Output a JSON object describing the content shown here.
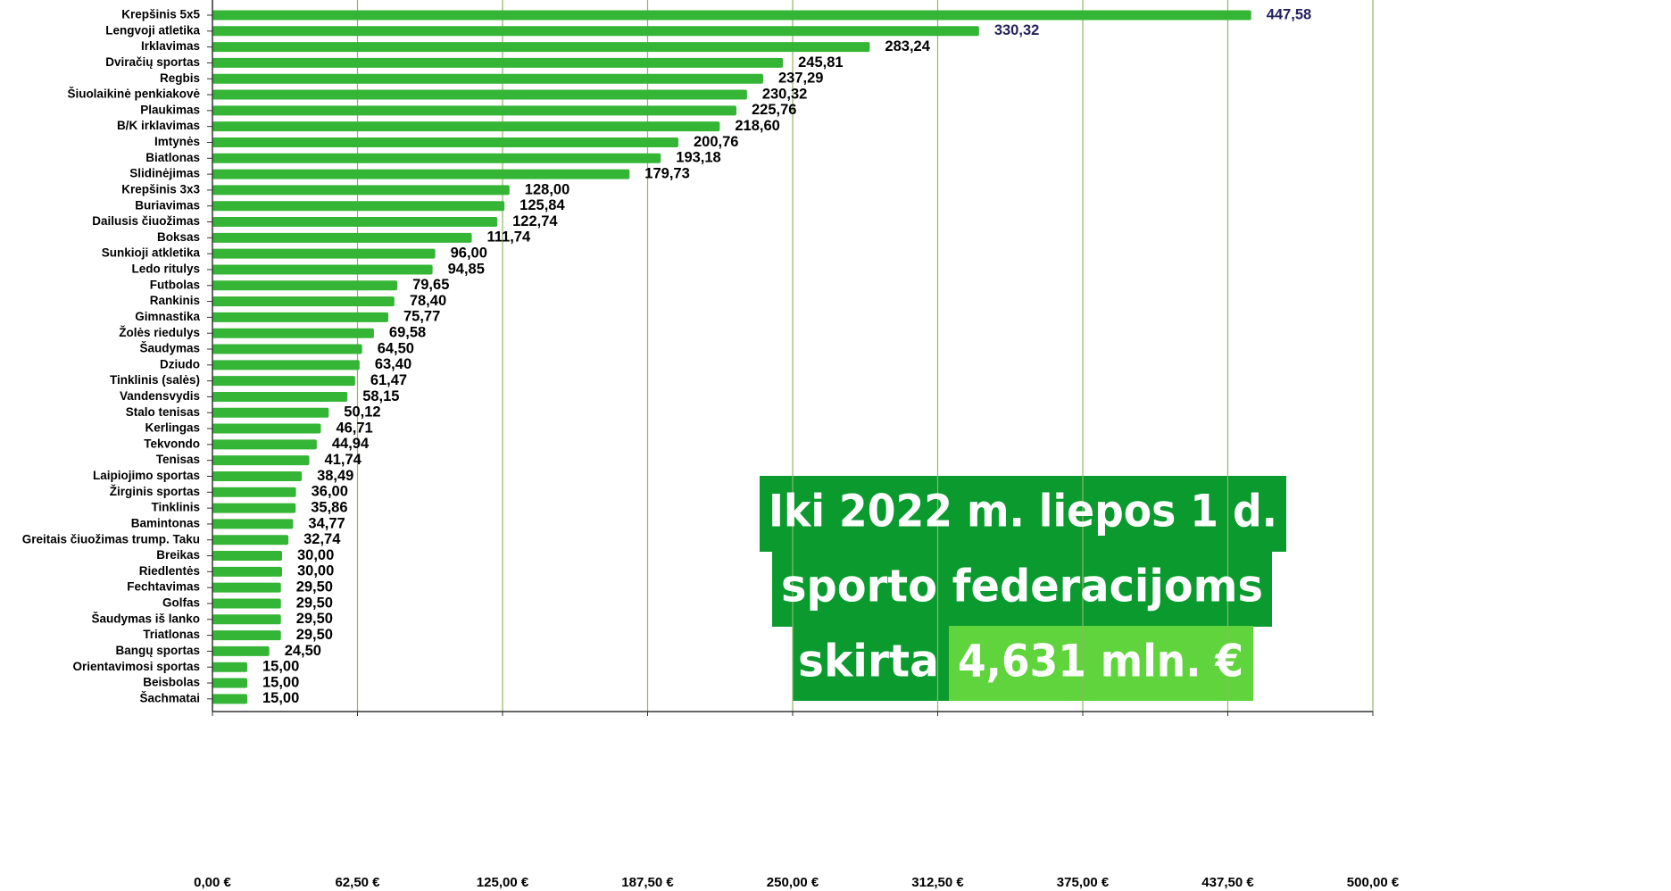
{
  "chart_data": {
    "type": "hbar",
    "categories": [
      "Krepšinis 5x5",
      "Lengvoji atletika",
      "Irklavimas",
      "Dviračių sportas",
      "Regbis",
      "Šiuolaikinė penkiakovė",
      "Plaukimas",
      "B/K irklavimas",
      "Imtynės",
      "Biatlonas",
      "Slidinėjimas",
      "Krepšinis 3x3",
      "Buriavimas",
      "Dailusis čiuožimas",
      "Boksas",
      "Sunkioji atkletika",
      "Ledo ritulys",
      "Futbolas",
      "Rankinis",
      "Gimnastika",
      "Žolės riedulys",
      "Šaudymas",
      "Dziudo",
      "Tinklinis (salės)",
      "Vandensvydis",
      "Stalo tenisas",
      "Kerlingas",
      "Tekvondo",
      "Tenisas",
      "Laipiojimo sportas",
      "Žirginis sportas",
      "Tinklinis",
      "Bamintonas",
      "Greitais čiuožimas trump. Taku",
      "Breikas",
      "Riedlentės",
      "Fechtavimas",
      "Golfas",
      "Šaudymas iš lanko",
      "Triatlonas",
      "Bangų sportas",
      "Orientavimosi sportas",
      "Beisbolas",
      "Šachmatai"
    ],
    "values": [
      447.58,
      330.32,
      283.24,
      245.81,
      237.29,
      230.32,
      225.76,
      218.6,
      200.76,
      193.18,
      179.73,
      128.0,
      125.84,
      122.74,
      111.74,
      96.0,
      94.85,
      79.65,
      78.4,
      75.77,
      69.58,
      64.5,
      63.4,
      61.47,
      58.15,
      50.12,
      46.71,
      44.94,
      41.74,
      38.49,
      36.0,
      35.86,
      34.77,
      32.74,
      30.0,
      30.0,
      29.5,
      29.5,
      29.5,
      29.5,
      24.5,
      15.0,
      15.0,
      15.0
    ],
    "value_labels": [
      "447,58",
      "330,32",
      "283,24",
      "245,81",
      "237,29",
      "230,32",
      "225,76",
      "218,60",
      "200,76",
      "193,18",
      "179,73",
      "128,00",
      "125,84",
      "122,74",
      "111,74",
      "96,00",
      "94,85",
      "79,65",
      "78,40",
      "75,77",
      "69,58",
      "64,50",
      "63,40",
      "61,47",
      "58,15",
      "50,12",
      "46,71",
      "44,94",
      "41,74",
      "38,49",
      "36,00",
      "35,86",
      "34,77",
      "32,74",
      "30,00",
      "30,00",
      "29,50",
      "29,50",
      "29,50",
      "29,50",
      "24,50",
      "15,00",
      "15,00",
      "15,00"
    ],
    "value_label_colors": [
      "#23235e",
      "#23235e",
      "#000000",
      "#000000",
      "#000000",
      "#000000",
      "#000000",
      "#000000",
      "#000000",
      "#000000",
      "#000000",
      "#000000",
      "#000000",
      "#000000",
      "#000000",
      "#000000",
      "#000000",
      "#000000",
      "#000000",
      "#000000",
      "#000000",
      "#000000",
      "#000000",
      "#000000",
      "#000000",
      "#000000",
      "#000000",
      "#000000",
      "#000000",
      "#000000",
      "#000000",
      "#000000",
      "#000000",
      "#000000",
      "#000000",
      "#000000",
      "#000000",
      "#000000",
      "#000000",
      "#000000",
      "#000000",
      "#000000",
      "#000000",
      "#000000"
    ],
    "color": "#35b535",
    "xlim": [
      0,
      500
    ],
    "xticks": [
      {
        "value": 0,
        "label": "0,00 €"
      },
      {
        "value": 62.5,
        "label": "62,50 €"
      },
      {
        "value": 125,
        "label": "125,00 €"
      },
      {
        "value": 187.5,
        "label": "187,50 €"
      },
      {
        "value": 250,
        "label": "250,00 €"
      },
      {
        "value": 312.5,
        "label": "312,50 €"
      },
      {
        "value": 375,
        "label": "375,00 €"
      },
      {
        "value": 437.5,
        "label": "437,50 €"
      },
      {
        "value": 500,
        "label": "500,00 €"
      }
    ],
    "grid": true,
    "annotation": [
      "Iki 2022 m. liepos 1 d.",
      "sporto federacijoms",
      "skirta",
      "4,631 mln. €"
    ]
  }
}
